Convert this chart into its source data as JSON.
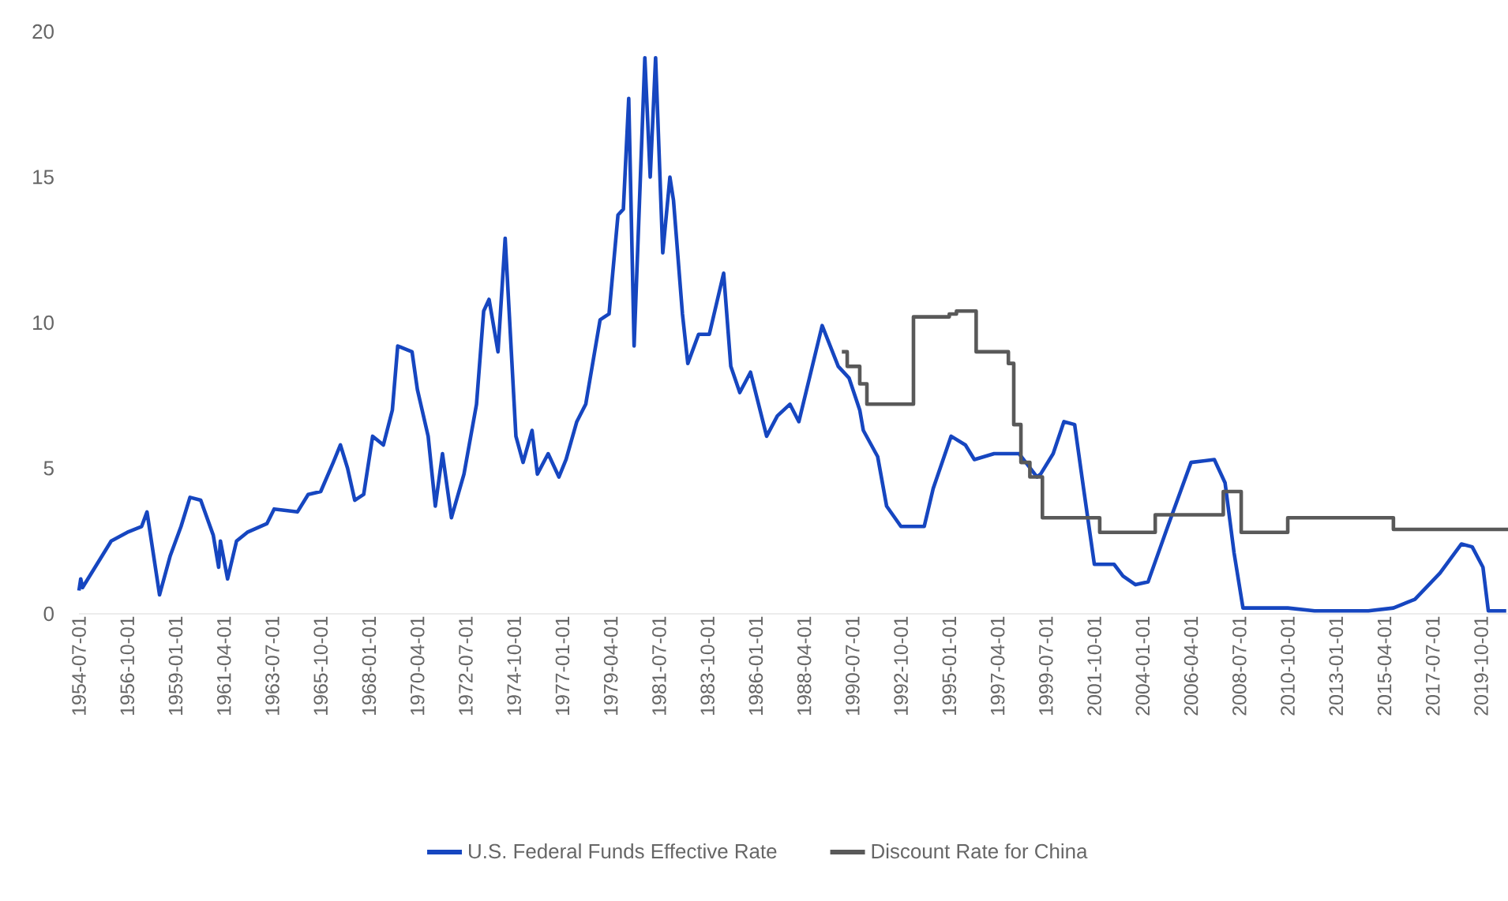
{
  "chart_data": {
    "type": "line",
    "marker": "none",
    "legend": "bottom",
    "xlim": [
      "1954-07-01",
      "2021-01-01"
    ],
    "xticks": [
      "1954-07-01",
      "1956-10-01",
      "1959-01-01",
      "1961-04-01",
      "1963-07-01",
      "1965-10-01",
      "1968-01-01",
      "1970-04-01",
      "1972-07-01",
      "1974-10-01",
      "1977-01-01",
      "1979-04-01",
      "1981-07-01",
      "1983-10-01",
      "1986-01-01",
      "1988-04-01",
      "1990-07-01",
      "1992-10-01",
      "1995-01-01",
      "1997-04-01",
      "1999-07-01",
      "2001-10-01",
      "2004-01-01",
      "2006-04-01",
      "2008-07-01",
      "2010-10-01",
      "2013-01-01",
      "2015-04-01",
      "2017-07-01",
      "2019-10-01"
    ],
    "ylim": [
      0,
      20
    ],
    "yticks": [
      0,
      5,
      10,
      15,
      20
    ],
    "series": [
      {
        "name": "U.S. Federal Funds Effective Rate",
        "color": "#1646c0",
        "x": [
          "1954-07",
          "1954-08",
          "1954-09",
          "1955-08",
          "1956-01",
          "1956-10",
          "1957-06",
          "1957-09",
          "1958-04",
          "1958-10",
          "1959-04",
          "1959-09",
          "1960-03",
          "1960-10",
          "1961-01",
          "1961-02",
          "1961-06",
          "1961-11",
          "1962-05",
          "1963-04",
          "1963-08",
          "1964-09",
          "1965-03",
          "1965-10",
          "1966-05",
          "1966-09",
          "1967-01",
          "1967-05",
          "1967-10",
          "1968-03",
          "1968-09",
          "1969-02",
          "1969-05",
          "1970-01",
          "1970-04",
          "1970-10",
          "1971-02",
          "1971-06",
          "1971-11",
          "1972-06",
          "1973-01",
          "1973-05",
          "1973-08",
          "1974-01",
          "1974-05",
          "1974-11",
          "1975-03",
          "1975-08",
          "1975-11",
          "1976-05",
          "1976-11",
          "1977-03",
          "1977-09",
          "1978-02",
          "1978-10",
          "1979-03",
          "1979-08",
          "1979-11",
          "1980-02",
          "1980-05",
          "1980-11",
          "1981-02",
          "1981-05",
          "1981-09",
          "1982-01",
          "1982-03",
          "1982-08",
          "1982-11",
          "1983-05",
          "1983-11",
          "1984-07",
          "1984-11",
          "1985-04",
          "1985-10",
          "1986-07",
          "1987-01",
          "1987-08",
          "1988-01",
          "1989-02",
          "1989-11",
          "1990-05",
          "1990-11",
          "1991-01",
          "1991-09",
          "1992-02",
          "1992-10",
          "1993-11",
          "1994-04",
          "1995-02",
          "1995-10",
          "1996-03",
          "1997-02",
          "1998-04",
          "1999-02",
          "1999-04",
          "1999-11",
          "2000-05",
          "2000-11",
          "2001-04",
          "2001-10",
          "2002-09",
          "2003-02",
          "2003-09",
          "2004-04",
          "2005-03",
          "2006-04",
          "2007-05",
          "2007-11",
          "2008-04",
          "2008-09",
          "2010-10",
          "2012-01",
          "2014-07",
          "2015-09",
          "2016-09",
          "2017-11",
          "2018-11",
          "2019-05",
          "2019-11",
          "2020-02",
          "2020-12"
        ],
        "values": [
          0.8,
          1.2,
          0.9,
          2.0,
          2.5,
          2.8,
          3.0,
          3.5,
          0.65,
          2.0,
          3.0,
          4.0,
          3.9,
          2.7,
          1.6,
          2.5,
          1.2,
          2.5,
          2.8,
          3.1,
          3.6,
          3.5,
          4.1,
          4.2,
          5.2,
          5.8,
          5.0,
          3.9,
          4.1,
          6.1,
          5.8,
          7.0,
          9.2,
          9.0,
          7.7,
          6.1,
          3.7,
          5.5,
          3.3,
          4.8,
          7.2,
          10.4,
          10.8,
          9.0,
          12.9,
          6.1,
          5.2,
          6.3,
          4.8,
          5.5,
          4.7,
          5.3,
          6.6,
          7.2,
          10.1,
          10.3,
          13.7,
          13.9,
          17.7,
          9.2,
          19.1,
          15.0,
          19.1,
          12.4,
          15.0,
          14.2,
          10.3,
          8.6,
          9.6,
          9.6,
          11.7,
          8.5,
          7.6,
          8.3,
          6.1,
          6.8,
          7.2,
          6.6,
          9.9,
          8.5,
          8.1,
          7.0,
          6.3,
          5.4,
          3.7,
          3.0,
          3.0,
          4.3,
          6.1,
          5.8,
          5.3,
          5.5,
          5.5,
          4.7,
          4.8,
          5.5,
          6.6,
          6.5,
          4.3,
          1.7,
          1.7,
          1.3,
          1.0,
          1.1,
          3.0,
          5.2,
          5.3,
          4.5,
          2.1,
          0.2,
          0.2,
          0.1,
          0.1,
          0.2,
          0.5,
          1.4,
          2.4,
          2.3,
          1.6,
          0.1,
          0.1
        ]
      },
      {
        "name": "Discount Rate for China",
        "color": "#595959",
        "type": "step",
        "x": [
          "1990-01",
          "1990-04",
          "1990-11",
          "1991-03",
          "1993-05",
          "1995-01",
          "1995-05",
          "1996-04",
          "1997-10",
          "1998-01",
          "1998-05",
          "1998-10",
          "1999-05",
          "2002-01",
          "2004-08",
          "2007-10",
          "2008-08",
          "2010-10",
          "2015-09",
          "2021-01"
        ],
        "values": [
          9.0,
          8.5,
          7.9,
          7.2,
          10.2,
          10.3,
          10.4,
          9.0,
          8.6,
          6.5,
          5.2,
          4.7,
          3.3,
          2.8,
          3.4,
          4.2,
          2.8,
          3.3,
          2.9,
          2.9
        ]
      }
    ]
  }
}
